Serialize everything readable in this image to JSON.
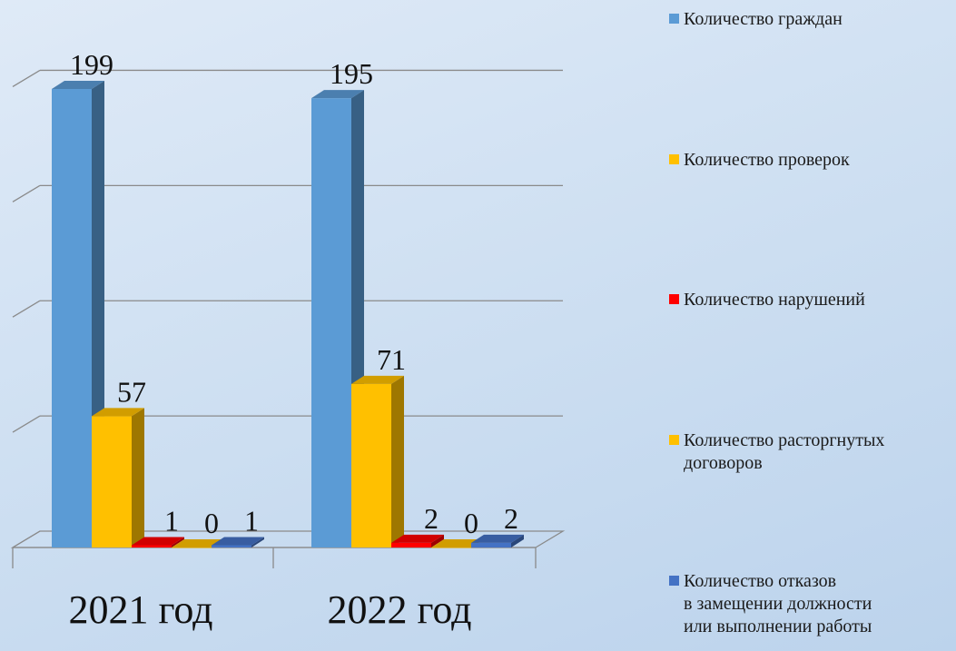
{
  "chart_data": {
    "type": "bar",
    "categories": [
      "2021 год",
      "2022 год"
    ],
    "series": [
      {
        "name": "Количество граждан",
        "color": "#5b9bd5",
        "values": [
          199,
          195
        ]
      },
      {
        "name": "Количество проверок",
        "color": "#ffc000",
        "values": [
          57,
          71
        ]
      },
      {
        "name": "Количество нарушений",
        "color": "#ff0000",
        "values": [
          1,
          2
        ]
      },
      {
        "name": "Количество расторгнутых\nдоговоров",
        "color": "#ffc000",
        "values": [
          0,
          0
        ]
      },
      {
        "name": "Количество отказов\nв замещении должности\nили выполнении работы",
        "color": "#4472c4",
        "values": [
          1,
          2
        ]
      }
    ],
    "ylim": [
      0,
      200
    ],
    "grid": true,
    "legend": "right",
    "style": "3d"
  }
}
